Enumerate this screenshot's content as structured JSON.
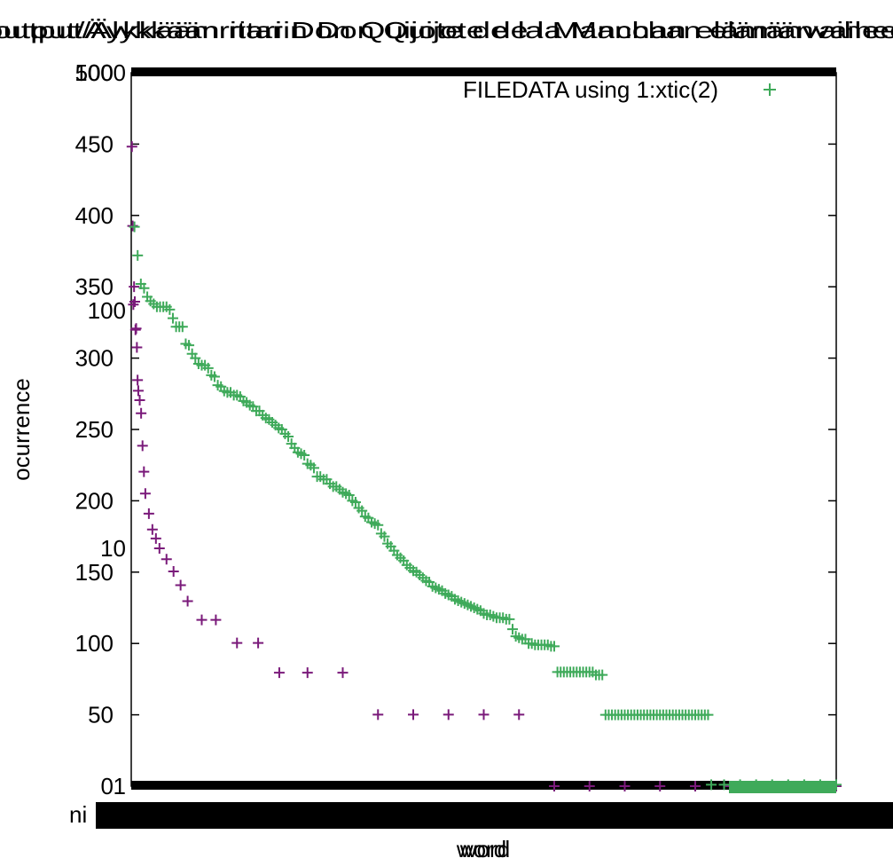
{
  "chart_data": {
    "type": "scatter",
    "overlapping_plots": 2,
    "title_overlay_a": "output/Äykkäämritari Don Quijote de la Manchan elämänvaiheet",
    "title_overlay_b": "output/Älykkään ritarin Don Quijote de la Manchan elämänvaiheet",
    "xlabel_overlay_a": "word",
    "xlabel_overlay_b": "word",
    "ylabel": "ocurrence",
    "x_tick_label_fragment": "ni",
    "grid": false,
    "border": true,
    "plots": [
      {
        "name": "log-scale plot",
        "yscale": "log",
        "ylim": [
          1,
          1000
        ],
        "yticks": [
          "1",
          "10",
          "100",
          "1000"
        ],
        "marker": "+",
        "color": "#7a1a7a",
        "series": [
          {
            "name": "",
            "x": [
              1,
              2,
              3,
              4,
              5,
              6,
              7,
              8,
              9,
              10,
              12,
              14,
              16,
              18,
              20,
              25,
              30,
              35,
              40,
              50,
              60,
              70,
              80,
              100,
              120,
              150,
              180,
              210,
              250,
              300,
              350,
              400,
              450,
              500,
              550,
              600,
              650,
              700,
              750,
              800,
              850,
              900,
              950,
              1000
            ],
            "y": [
              489,
              227,
              106,
              126,
              109,
              83,
              84,
              70,
              51,
              46,
              42,
              37,
              27,
              21,
              17,
              14,
              12,
              11,
              10,
              9,
              8,
              7,
              6,
              5,
              5,
              4,
              4,
              3,
              3,
              3,
              2,
              2,
              2,
              2,
              2,
              1,
              1,
              1,
              1,
              1,
              1,
              1,
              1,
              1
            ]
          }
        ]
      },
      {
        "name": "linear plot",
        "yscale": "linear",
        "ylim": [
          0,
          500
        ],
        "yticks": [
          "0",
          "50",
          "100",
          "150",
          "200",
          "250",
          "300",
          "350",
          "400",
          "450",
          "500"
        ],
        "marker": "+",
        "color": "#3faa5a",
        "series": [
          {
            "name": "FILEDATA using 1:xtic(2)",
            "x": [
              1,
              2,
              3,
              4,
              5,
              6,
              7,
              8,
              9,
              10,
              11,
              12,
              13,
              14,
              15,
              16,
              17,
              18,
              19,
              20,
              21,
              22,
              23,
              24,
              25,
              26,
              27,
              28,
              29,
              30,
              31,
              32,
              33,
              34,
              35,
              36,
              37,
              38,
              39,
              40,
              41,
              42,
              43,
              44,
              45,
              46,
              47,
              48,
              49,
              50,
              51,
              52,
              53,
              54,
              55,
              56,
              57,
              58,
              59,
              60,
              61,
              62,
              63,
              64,
              65,
              66,
              67,
              68,
              69,
              70,
              71,
              72,
              73,
              74,
              75,
              76,
              77,
              78,
              79,
              80
            ],
            "y": [
              392,
              372,
              352,
              349,
              343,
              340,
              338,
              336,
              336,
              336,
              336,
              334,
              328,
              322,
              322,
              322,
              310,
              309,
              303,
              300,
              296,
              295,
              295,
              293,
              288,
              287,
              281,
              280,
              277,
              276,
              276,
              274,
              274,
              273,
              270,
              269,
              267,
              266,
              263,
              263,
              260,
              258,
              257,
              255,
              253,
              251,
              250,
              247,
              245,
              240,
              237,
              234,
              233,
              232,
              226,
              225,
              223,
              217,
              217,
              215,
              215,
              212,
              210,
              210,
              208,
              206,
              205,
              204,
              200,
              199,
              195,
              193,
              189,
              188,
              185,
              184,
              183,
              177,
              175,
              170
            ]
          },
          {
            "name": "",
            "x": [
              81,
              82,
              83,
              84,
              85,
              86,
              87,
              88,
              89,
              90,
              91,
              92,
              93,
              94,
              95,
              96,
              97,
              98,
              99,
              100,
              101,
              102,
              103,
              104,
              105,
              106,
              107,
              108,
              109,
              110,
              111,
              112,
              113,
              114,
              115,
              116,
              117,
              118,
              119,
              120,
              121,
              122,
              123,
              124,
              125,
              126,
              127,
              128,
              129,
              130,
              131,
              132,
              133,
              134,
              135,
              136,
              137,
              138,
              139,
              140,
              141,
              142,
              143,
              144,
              145,
              146,
              147,
              148,
              149,
              150,
              151,
              152,
              153,
              154,
              155,
              156,
              157,
              158,
              159,
              160,
              161,
              162,
              163,
              164,
              165,
              166,
              167,
              168,
              169,
              170,
              171,
              172,
              173,
              174,
              175,
              176,
              177,
              178,
              179,
              180
            ],
            "y": [
              168,
              165,
              162,
              160,
              158,
              155,
              153,
              151,
              150,
              148,
              146,
              144,
              143,
              140,
              139,
              138,
              137,
              135,
              134,
              133,
              131,
              130,
              129,
              128,
              127,
              126,
              125,
              124,
              123,
              121,
              120,
              120,
              119,
              118,
              118,
              118,
              117,
              117,
              110,
              105,
              104,
              103,
              103,
              100,
              100,
              99,
              99,
              99,
              99,
              99,
              98,
              98,
              80,
              80,
              80,
              80,
              80,
              80,
              80,
              80,
              80,
              80,
              80,
              80,
              78,
              78,
              78,
              50,
              50,
              50,
              50,
              50,
              50,
              50,
              50,
              50,
              50,
              50,
              50,
              50,
              50,
              50,
              50,
              50,
              50,
              50,
              50,
              50,
              50,
              50,
              50,
              50,
              50,
              50,
              50,
              50,
              50,
              50,
              50,
              50
            ]
          },
          {
            "name": "",
            "x": [
              181,
              185,
              190,
              195,
              200,
              205,
              210,
              215,
              220
            ],
            "y": [
              1,
              1,
              1,
              1,
              1,
              1,
              1,
              1,
              1
            ]
          }
        ]
      }
    ],
    "legend": {
      "position": "top-right",
      "entries": [
        "FILEDATA using 1:xtic(2)"
      ]
    }
  }
}
